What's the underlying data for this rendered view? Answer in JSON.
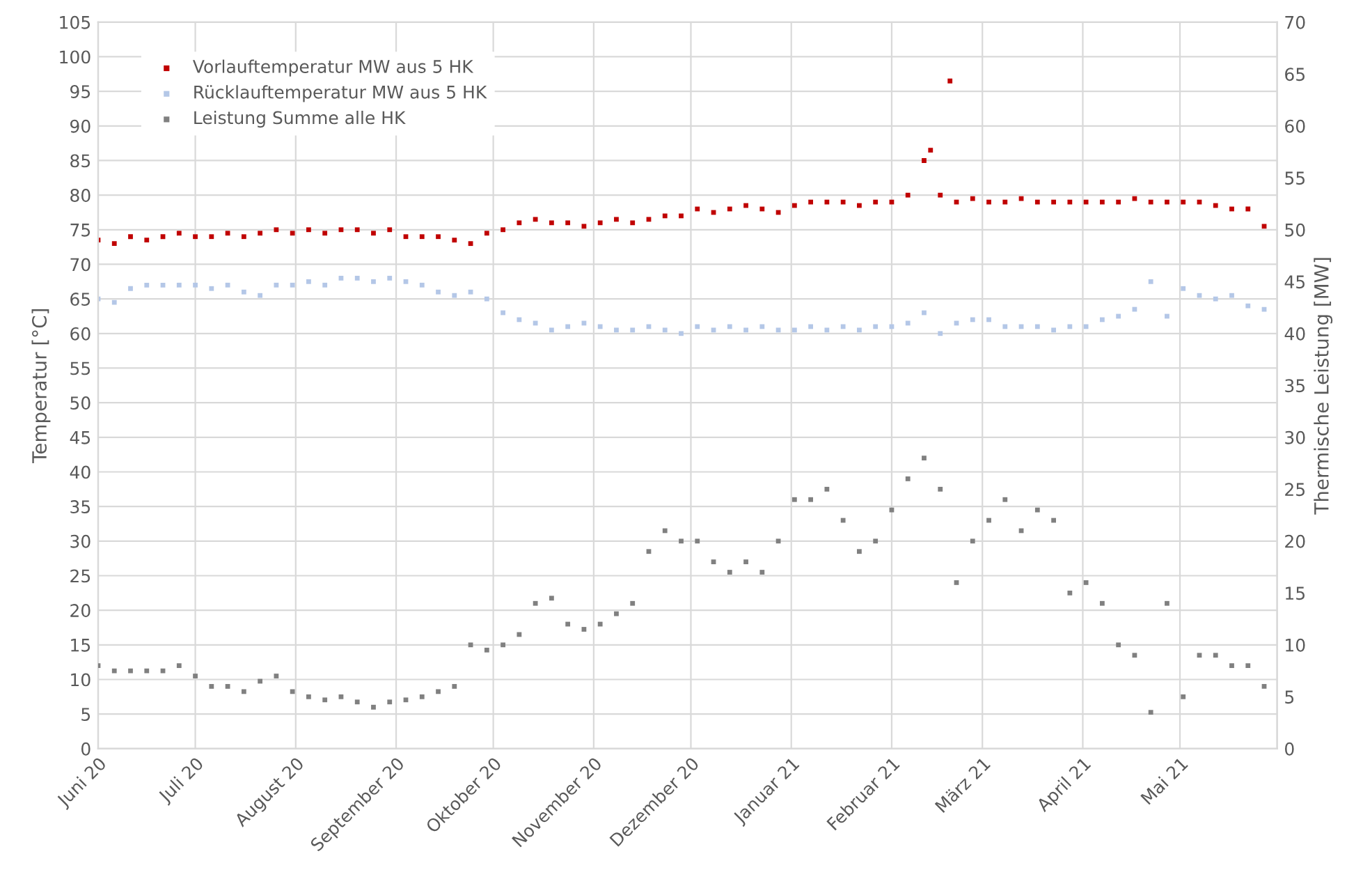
{
  "chart_data": {
    "type": "scatter",
    "ylabel": "Temperatur [°C]",
    "y2label": "Thermische Leistung [MW]",
    "x": [
      "2020-06-01",
      "2020-06-06",
      "2020-06-11",
      "2020-06-16",
      "2020-06-21",
      "2020-06-26",
      "2020-07-01",
      "2020-07-06",
      "2020-07-11",
      "2020-07-16",
      "2020-07-21",
      "2020-07-26",
      "2020-07-31",
      "2020-08-05",
      "2020-08-10",
      "2020-08-15",
      "2020-08-20",
      "2020-08-25",
      "2020-08-30",
      "2020-09-04",
      "2020-09-09",
      "2020-09-14",
      "2020-09-19",
      "2020-09-24",
      "2020-09-29",
      "2020-10-04",
      "2020-10-09",
      "2020-10-14",
      "2020-10-19",
      "2020-10-24",
      "2020-10-29",
      "2020-11-03",
      "2020-11-08",
      "2020-11-13",
      "2020-11-18",
      "2020-11-23",
      "2020-11-28",
      "2020-12-03",
      "2020-12-08",
      "2020-12-13",
      "2020-12-18",
      "2020-12-23",
      "2020-12-28",
      "2021-01-02",
      "2021-01-07",
      "2021-01-12",
      "2021-01-17",
      "2021-01-22",
      "2021-01-27",
      "2021-02-01",
      "2021-02-06",
      "2021-02-11",
      "2021-02-16",
      "2021-02-21",
      "2021-02-26",
      "2021-03-03",
      "2021-03-08",
      "2021-03-13",
      "2021-03-18",
      "2021-03-23",
      "2021-03-28",
      "2021-04-02",
      "2021-04-07",
      "2021-04-12",
      "2021-04-17",
      "2021-04-22",
      "2021-04-27",
      "2021-05-02",
      "2021-05-07",
      "2021-05-12",
      "2021-05-17",
      "2021-05-22",
      "2021-05-27"
    ],
    "series": [
      {
        "name": "Vorlauftemperatur MW aus 5 HK",
        "color": "#c00000",
        "x": [
          "2020-06-01",
          "2020-06-06",
          "2020-06-11",
          "2020-06-16",
          "2020-06-21",
          "2020-06-26",
          "2020-07-01",
          "2020-07-06",
          "2020-07-11",
          "2020-07-16",
          "2020-07-21",
          "2020-07-26",
          "2020-07-31",
          "2020-08-05",
          "2020-08-10",
          "2020-08-15",
          "2020-08-20",
          "2020-08-25",
          "2020-08-30",
          "2020-09-04",
          "2020-09-09",
          "2020-09-14",
          "2020-09-19",
          "2020-09-24",
          "2020-09-29",
          "2020-10-04",
          "2020-10-09",
          "2020-10-14",
          "2020-10-19",
          "2020-10-24",
          "2020-10-29",
          "2020-11-03",
          "2020-11-08",
          "2020-11-13",
          "2020-11-18",
          "2020-11-23",
          "2020-11-28",
          "2020-12-03",
          "2020-12-08",
          "2020-12-13",
          "2020-12-18",
          "2020-12-23",
          "2020-12-28",
          "2021-01-02",
          "2021-01-07",
          "2021-01-12",
          "2021-01-17",
          "2021-01-22",
          "2021-01-27",
          "2021-02-01",
          "2021-02-06",
          "2021-02-11",
          "2021-02-13",
          "2021-02-16",
          "2021-02-19",
          "2021-02-21",
          "2021-02-26",
          "2021-03-03",
          "2021-03-08",
          "2021-03-13",
          "2021-03-18",
          "2021-03-23",
          "2021-03-28",
          "2021-04-02",
          "2021-04-07",
          "2021-04-12",
          "2021-04-17",
          "2021-04-22",
          "2021-04-27",
          "2021-05-02",
          "2021-05-07",
          "2021-05-12",
          "2021-05-17",
          "2021-05-22",
          "2021-05-27"
        ],
        "values": [
          73.5,
          73,
          74,
          73.5,
          74,
          74.5,
          74,
          74,
          74.5,
          74,
          74.5,
          75,
          74.5,
          75,
          74.5,
          75,
          75,
          74.5,
          75,
          74,
          74,
          74,
          73.5,
          73,
          74.5,
          75,
          76,
          76.5,
          76,
          76,
          75.5,
          76,
          76.5,
          76,
          76.5,
          77,
          77,
          78,
          77.5,
          78,
          78.5,
          78,
          77.5,
          78.5,
          79,
          79,
          79,
          78.5,
          79,
          79,
          80,
          85,
          86.5,
          80,
          96.5,
          79,
          79.5,
          79,
          79,
          79.5,
          79,
          79,
          79,
          79,
          79,
          79,
          79.5,
          79,
          79,
          79,
          79,
          78.5,
          78,
          78,
          75.5
        ]
      },
      {
        "name": "Rücklauftemperatur MW aus 5 HK",
        "color": "#b4c7e7",
        "values": [
          65,
          64.5,
          66.5,
          67,
          67,
          67,
          67,
          66.5,
          67,
          66,
          65.5,
          67,
          67,
          67.5,
          67,
          68,
          68,
          67.5,
          68,
          67.5,
          67,
          66,
          65.5,
          66,
          65,
          63,
          62,
          61.5,
          60.5,
          61,
          61.5,
          61,
          60.5,
          60.5,
          61,
          60.5,
          60,
          61,
          60.5,
          61,
          60.5,
          61,
          60.5,
          60.5,
          61,
          60.5,
          61,
          60.5,
          61,
          61,
          61.5,
          63,
          60,
          61.5,
          62,
          62,
          61,
          61,
          61,
          60.5,
          61,
          61,
          62,
          62.5,
          63.5,
          67.5,
          62.5,
          66.5,
          65.5,
          65,
          65.5,
          64,
          63.5
        ]
      },
      {
        "name": "Leistung Summe alle HK",
        "color": "#808080",
        "axis": "y2",
        "values": [
          8,
          7.5,
          7.5,
          7.5,
          7.5,
          8,
          7,
          6,
          6,
          5.5,
          6.5,
          7,
          5.5,
          5,
          4.7,
          5,
          4.5,
          4,
          4.5,
          4.7,
          5,
          5.5,
          6,
          10,
          9.5,
          10,
          11,
          14,
          14.5,
          12,
          11.5,
          12,
          13,
          14,
          19,
          21,
          20,
          20,
          18,
          17,
          18,
          17,
          20,
          24,
          24,
          25,
          22,
          19,
          20,
          23,
          26,
          28,
          25,
          16,
          20,
          22,
          24,
          21,
          23,
          22,
          15,
          16,
          14,
          10,
          9,
          3.5,
          14,
          5,
          9,
          9,
          8,
          8,
          6
        ]
      }
    ],
    "xlim": [
      "2020-06-01",
      "2021-05-31"
    ],
    "xticks": [
      {
        "value": "2020-06-01",
        "label": "Juni 20"
      },
      {
        "value": "2020-07-01",
        "label": "Juli 20"
      },
      {
        "value": "2020-08-01",
        "label": "August 20"
      },
      {
        "value": "2020-09-01",
        "label": "September 20"
      },
      {
        "value": "2020-10-01",
        "label": "Oktober 20"
      },
      {
        "value": "2020-11-01",
        "label": "November 20"
      },
      {
        "value": "2020-12-01",
        "label": "Dezember 20"
      },
      {
        "value": "2021-01-01",
        "label": "Januar 21"
      },
      {
        "value": "2021-02-01",
        "label": "Februar 21"
      },
      {
        "value": "2021-03-01",
        "label": "März 21"
      },
      {
        "value": "2021-04-01",
        "label": "April 21"
      },
      {
        "value": "2021-05-01",
        "label": "Mai 21"
      }
    ],
    "ylim": [
      0,
      105
    ],
    "yticks": [
      0,
      5,
      10,
      15,
      20,
      25,
      30,
      35,
      40,
      45,
      50,
      55,
      60,
      65,
      70,
      75,
      80,
      85,
      90,
      95,
      100,
      105
    ],
    "y2lim": [
      0,
      70
    ],
    "y2ticks": [
      0,
      5,
      10,
      15,
      20,
      25,
      30,
      35,
      40,
      45,
      50,
      55,
      60,
      65,
      70
    ],
    "grid": true,
    "legend": "top left",
    "marker": "square"
  }
}
